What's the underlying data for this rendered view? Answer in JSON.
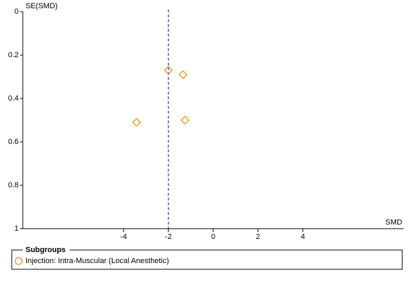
{
  "chart_data": {
    "type": "scatter",
    "x_label": "SMD",
    "y_label": "SE(SMD)",
    "xlim": [
      -8.5,
      8.5
    ],
    "xticks": [
      -4,
      -2,
      0,
      2,
      4
    ],
    "ylim": [
      0,
      1
    ],
    "yticks": [
      0,
      0.2,
      0.4,
      0.6,
      0.8,
      1
    ],
    "y_reversed": true,
    "reference_x": -2,
    "legend_title": "Subgroups",
    "series": [
      {
        "name": "Injection: Intra-Muscular (Local Anesthetic)",
        "color": "#f0900a",
        "x": [
          -2.0,
          -1.35,
          -3.42,
          -1.26
        ],
        "values": [
          0.27,
          0.29,
          0.51,
          0.5
        ]
      }
    ]
  }
}
